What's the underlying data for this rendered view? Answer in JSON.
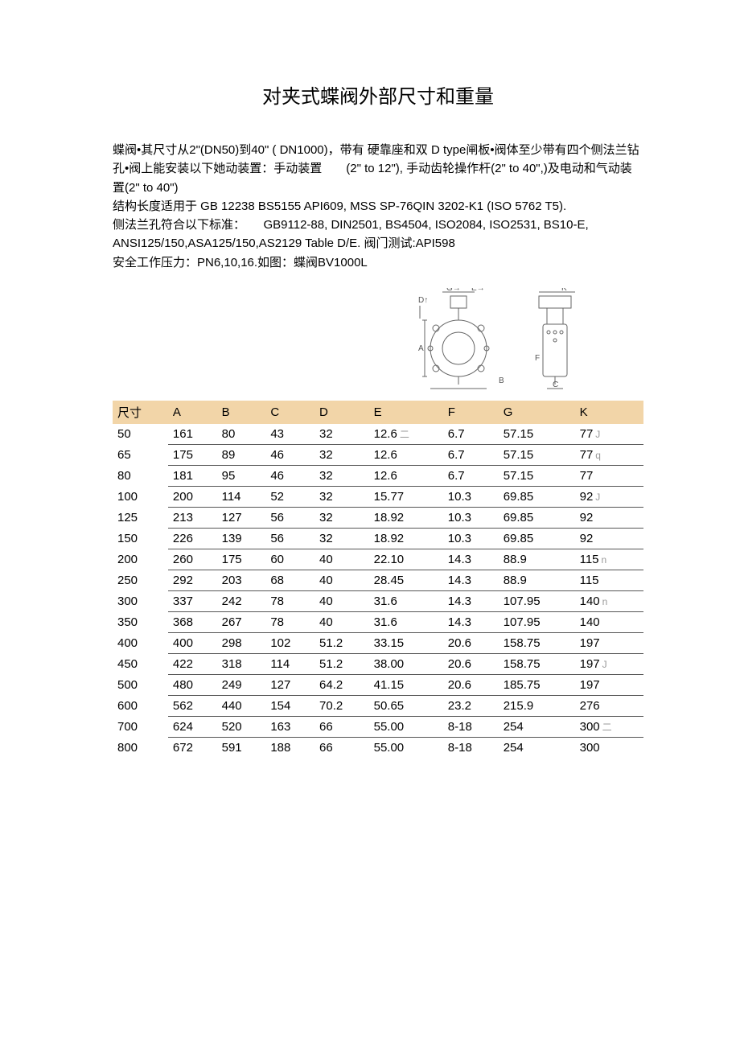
{
  "title": "对夹式蝶阀外部尺寸和重量",
  "paragraphs": [
    "蝶阀•其尺寸从2\"(DN50)到40\" ( DN1000)，带有 硬靠座和双 D type闸板•阀体至少带有四个侧法兰钻孔•阀上能安装以下她动装置：手动装置　　(2\" to 12\"), 手动齿轮操作杆(2\" to 40\",)及电动和气动装置(2\" to 40\")",
    "结构长度适用于 GB 12238 BS5155 API609, MSS SP-76QIN 3202-K1 (ISO 5762 T5).",
    "侧法兰孔符合以下标准：　　GB9112-88, DIN2501, BS4504, ISO2084, ISO2531, BS10-E, ANSI125/150,ASA125/150,AS2129 Table D/E. 阀门测试:API598",
    "安全工作压力：PN6,10,16.如图：蝶阀BV1000L"
  ],
  "diagram": {
    "labels": [
      "A",
      "B",
      "C",
      "D",
      "E",
      "F",
      "G",
      "K"
    ],
    "stroke": "#666666"
  },
  "table": {
    "header_bg": "#f2d5a8",
    "border_color": "#555555",
    "fontsize": 15,
    "columns": [
      "尺寸",
      "A",
      "B",
      "C",
      "D",
      "E",
      "F",
      "G",
      "K"
    ],
    "rows": [
      [
        "50",
        "161",
        "80",
        "43",
        "32",
        "12.6",
        "6.7",
        "57.15",
        "77"
      ],
      [
        "65",
        "175",
        "89",
        "46",
        "32",
        "12.6",
        "6.7",
        "57.15",
        "77"
      ],
      [
        "80",
        "181",
        "95",
        "46",
        "32",
        "12.6",
        "6.7",
        "57.15",
        "77"
      ],
      [
        "100",
        "200",
        "114",
        "52",
        "32",
        "15.77",
        "10.3",
        "69.85",
        "92"
      ],
      [
        "125",
        "213",
        "127",
        "56",
        "32",
        "18.92",
        "10.3",
        "69.85",
        "92"
      ],
      [
        "150",
        "226",
        "139",
        "56",
        "32",
        "18.92",
        "10.3",
        "69.85",
        "92"
      ],
      [
        "200",
        "260",
        "175",
        "60",
        "40",
        "22.10",
        "14.3",
        "88.9",
        "115"
      ],
      [
        "250",
        "292",
        "203",
        "68",
        "40",
        "28.45",
        "14.3",
        "88.9",
        "115"
      ],
      [
        "300",
        "337",
        "242",
        "78",
        "40",
        "31.6",
        "14.3",
        "107.95",
        "140"
      ],
      [
        "350",
        "368",
        "267",
        "78",
        "40",
        "31.6",
        "14.3",
        "107.95",
        "140"
      ],
      [
        "400",
        "400",
        "298",
        "102",
        "51.2",
        "33.15",
        "20.6",
        "158.75",
        "197"
      ],
      [
        "450",
        "422",
        "318",
        "114",
        "51.2",
        "38.00",
        "20.6",
        "158.75",
        "197"
      ],
      [
        "500",
        "480",
        "249",
        "127",
        "64.2",
        "41.15",
        "20.6",
        "185.75",
        "197"
      ],
      [
        "600",
        "562",
        "440",
        "154",
        "70.2",
        "50.65",
        "23.2",
        "215.9",
        "276"
      ],
      [
        "700",
        "624",
        "520",
        "163",
        "66",
        "55.00",
        "8-18",
        "254",
        "300"
      ],
      [
        "800",
        "672",
        "591",
        "188",
        "66",
        "55.00",
        "8-18",
        "254",
        "300"
      ]
    ],
    "annotations": {
      "0": {
        "4": "二",
        "7": "J"
      },
      "1": {
        "7": "q"
      },
      "3": {
        "7": "J"
      },
      "6": {
        "7": "n"
      },
      "8": {
        "7": "n"
      },
      "11": {
        "7": "J"
      },
      "14": {
        "7": "二"
      }
    }
  }
}
